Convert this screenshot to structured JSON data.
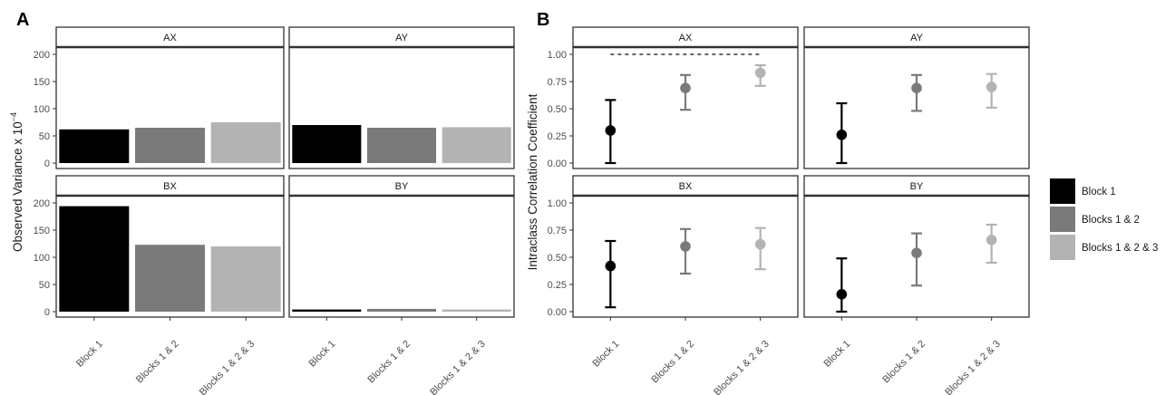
{
  "chart_data": [
    {
      "panel": "A",
      "type": "bar",
      "ylabel": "Observed Variance x 10",
      "ylabel_exponent": "−4",
      "ylim": [
        0,
        200
      ],
      "yticks": [
        0,
        50,
        100,
        150,
        200
      ],
      "categories": [
        "Block 1",
        "Blocks 1 & 2",
        "Blocks 1 & 2 & 3"
      ],
      "facets": [
        {
          "name": "AX",
          "values": [
            62,
            65,
            75
          ]
        },
        {
          "name": "AY",
          "values": [
            70,
            65,
            66
          ]
        },
        {
          "name": "BX",
          "values": [
            194,
            123,
            120
          ]
        },
        {
          "name": "BY",
          "values": [
            4,
            5,
            4
          ]
        }
      ]
    },
    {
      "panel": "B",
      "type": "scatter",
      "ylabel": "Intraclass Correlation Coefficient",
      "ylim": [
        0,
        1
      ],
      "yticks": [
        "0.00",
        "0.25",
        "0.50",
        "0.75",
        "1.00"
      ],
      "categories": [
        "Block 1",
        "Blocks 1 & 2",
        "Blocks 1 & 2 & 3"
      ],
      "facets": [
        {
          "name": "AX",
          "estimates": [
            0.3,
            0.69,
            0.83
          ],
          "lower": [
            0.0,
            0.49,
            0.71
          ],
          "upper": [
            0.58,
            0.81,
            0.9
          ],
          "reference_line": 1.0
        },
        {
          "name": "AY",
          "estimates": [
            0.26,
            0.69,
            0.7
          ],
          "lower": [
            0.0,
            0.48,
            0.51
          ],
          "upper": [
            0.55,
            0.81,
            0.82
          ]
        },
        {
          "name": "BX",
          "estimates": [
            0.42,
            0.6,
            0.62
          ],
          "lower": [
            0.04,
            0.35,
            0.39
          ],
          "upper": [
            0.65,
            0.76,
            0.77
          ]
        },
        {
          "name": "BY",
          "estimates": [
            0.16,
            0.54,
            0.66
          ],
          "lower": [
            0.0,
            0.24,
            0.45
          ],
          "upper": [
            0.49,
            0.72,
            0.8
          ]
        }
      ]
    }
  ],
  "legend": {
    "items": [
      {
        "label": "Block 1",
        "color": "#000000"
      },
      {
        "label": "Blocks 1 & 2",
        "color": "#7a7a7a"
      },
      {
        "label": "Blocks 1 & 2 & 3",
        "color": "#b3b3b3"
      }
    ]
  },
  "panel_letters": [
    "A",
    "B"
  ]
}
